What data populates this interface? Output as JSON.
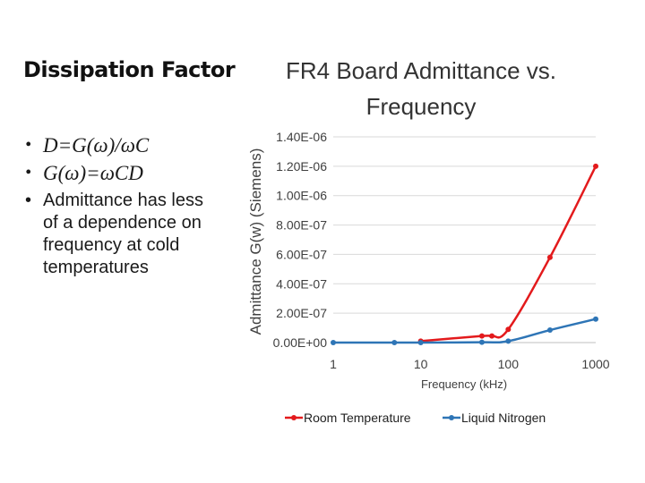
{
  "slide": {
    "title": "Dissipation Factor",
    "bullets": [
      {
        "text": "D=G(ω)/ωC",
        "kind": "formula"
      },
      {
        "text": "G(ω)=ωCD",
        "kind": "formula"
      },
      {
        "text": "Admittance has less of a dependence on frequency at cold temperatures",
        "kind": "text"
      }
    ]
  },
  "chart_data": {
    "type": "line",
    "title_lines": [
      "FR4 Board Admittance vs.",
      "Frequency"
    ],
    "xlabel": "Frequency (kHz)",
    "ylabel": "Admittance G(w) (Siemens)",
    "xscale": "log",
    "xlim": [
      1,
      1000
    ],
    "ylim": [
      0,
      1.4e-06
    ],
    "x_tick_labels": [
      "1",
      "10",
      "100",
      "1000"
    ],
    "y_tick_labels": [
      "0.00E+00",
      "2.00E-07",
      "4.00E-07",
      "6.00E-07",
      "8.00E-07",
      "1.00E-06",
      "1.20E-06",
      "1.40E-06"
    ],
    "grid": "horizontal",
    "legend_position": "bottom",
    "series": [
      {
        "name": "Room Temperature",
        "color": "#e31a1c",
        "x": [
          10,
          50,
          65,
          100,
          300,
          1000
        ],
        "y": [
          1e-08,
          4.5e-08,
          4.5e-08,
          9e-08,
          5.8e-07,
          1.2e-06
        ]
      },
      {
        "name": "Liquid Nitrogen",
        "color": "#2e75b6",
        "x": [
          1,
          5,
          10,
          50,
          100,
          300,
          1000
        ],
        "y": [
          0,
          0,
          0,
          2e-09,
          1e-08,
          8.5e-08,
          1.6e-07
        ]
      }
    ]
  }
}
